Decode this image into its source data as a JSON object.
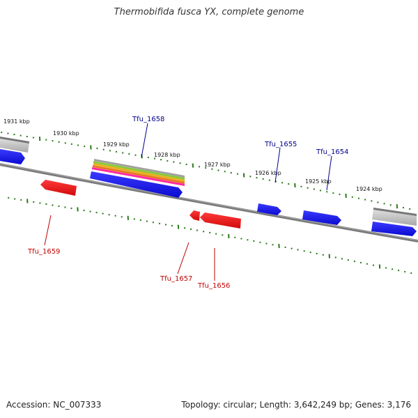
{
  "title": "Thermobifida fusca YX, complete genome",
  "footer": {
    "accession": "Accession: NC_007333",
    "summary": "Topology: circular; Length: 3,642,249 bp; Genes: 3,176"
  },
  "colors": {
    "forward": "#1a1aee",
    "reverse": "#ee1a1a",
    "forward_label": "#00008b",
    "reverse_label": "#c00000",
    "tick": "#2a7a1a",
    "backbone": "#7a7a7a"
  },
  "kbp_labels": [
    "1931 kbp",
    "1930 kbp",
    "1929 kbp",
    "1928 kbp",
    "1927 kbp",
    "1926 kbp",
    "1925 kbp",
    "1924 kbp"
  ],
  "gene_labels": {
    "Tfu_1658": "Tfu_1658",
    "Tfu_1655": "Tfu_1655",
    "Tfu_1654": "Tfu_1654",
    "Tfu_1659": "Tfu_1659",
    "Tfu_1657": "Tfu_1657",
    "Tfu_1656": "Tfu_1656"
  }
}
